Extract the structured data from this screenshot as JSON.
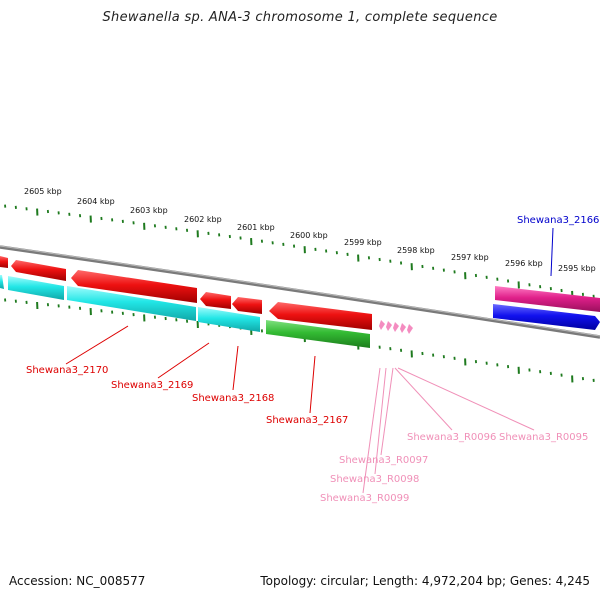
{
  "title": "Shewanella sp. ANA-3 chromosome 1, complete sequence",
  "footer": {
    "accession": "Accession: NC_008577",
    "info": "Topology: circular; Length: 4,972,204 bp; Genes: 4,245"
  },
  "kbp_labels": [
    "2605 kbp",
    "2604 kbp",
    "2603 kbp",
    "2602 kbp",
    "2601 kbp",
    "2600 kbp",
    "2599 kbp",
    "2598 kbp",
    "2597 kbp",
    "2596 kbp",
    "2595 kbp"
  ],
  "gene_labels": [
    {
      "text": "Shewana3_2166",
      "color": "#0000cc"
    },
    {
      "text": "Shewana3_2170",
      "color": "#dd0000"
    },
    {
      "text": "Shewana3_2169",
      "color": "#dd0000"
    },
    {
      "text": "Shewana3_2168",
      "color": "#dd0000"
    },
    {
      "text": "Shewana3_2167",
      "color": "#dd0000"
    },
    {
      "text": "Shewana3_R0096",
      "color": "#f090b8"
    },
    {
      "text": "Shewana3_R0095",
      "color": "#f090b8"
    },
    {
      "text": "Shewana3_R0097",
      "color": "#f090b8"
    },
    {
      "text": "Shewana3_R0098",
      "color": "#f090b8"
    },
    {
      "text": "Shewana3_R0099",
      "color": "#f090b8"
    }
  ],
  "colors": {
    "backbone": "#7a7a7a",
    "tick": "#1e7a1e",
    "red_gene": "#ee1111",
    "cyan_gene": "#22e6e6",
    "green_gene": "#33bb33",
    "magenta_gene": "#e0208a",
    "blue_gene": "#1111ee",
    "rna_gene": "#f48cc0"
  }
}
